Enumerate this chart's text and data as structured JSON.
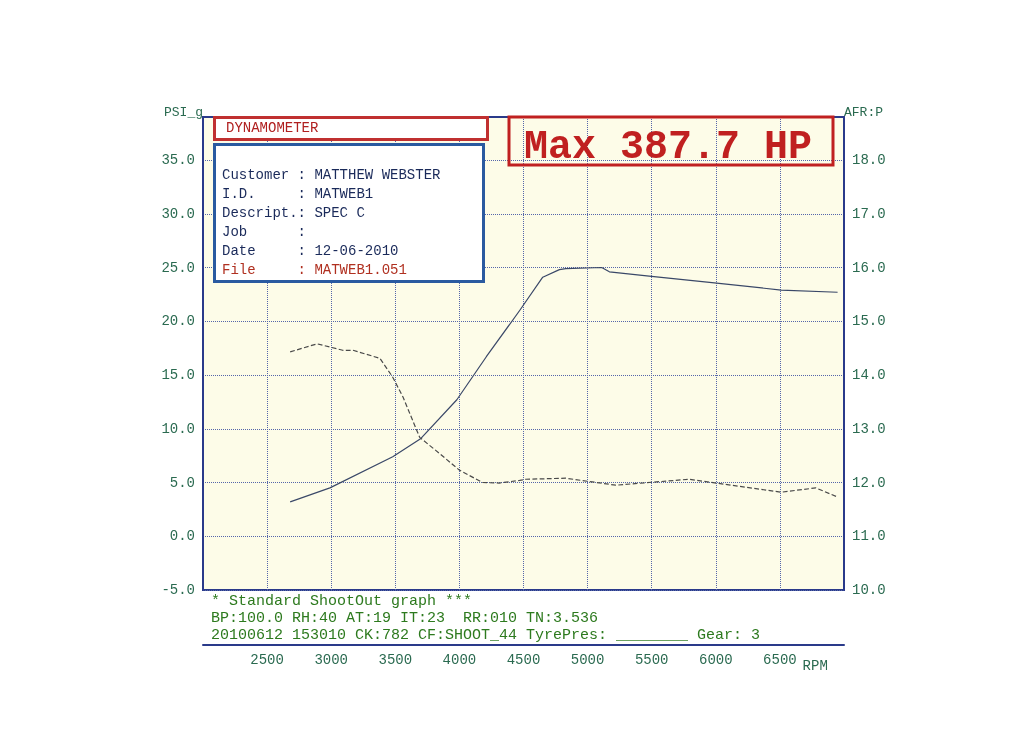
{
  "chart_data": {
    "type": "line",
    "title": "Max 387.7 HP",
    "xlabel": "RPM",
    "ylabel": "PSI_g",
    "y2label": "AFR:P",
    "annotations": [
      "DYNAMOMETER",
      "Customer : MATTHEW WEBSTER",
      "I.D.     : MATWEB1",
      "Descript.: SPEC C",
      "Job      :",
      "Date     : 12-06-2010",
      "File     : MATWEB1.051",
      "* Standard ShootOut graph ***",
      "BP:100.0 RH:40 AT:19 IT:23  RR:010 TN:3.536",
      "20100612 153010 CK:782 CF:SHOOT_44 TyrePres: ________ Gear: 3"
    ],
    "series": [
      {
        "color": "#3a4868",
        "line_style": "solid",
        "x": [
          2680,
          2990,
          3480,
          3700,
          3980,
          4210,
          4470,
          4650,
          4780,
          4830,
          5110,
          5170,
          5480,
          5970,
          6510,
          6950
        ],
        "values": [
          3.2,
          4.5,
          7.4,
          9.1,
          12.7,
          16.7,
          21.0,
          24.1,
          24.8,
          24.9,
          25.0,
          24.6,
          24.2,
          23.6,
          22.9,
          22.7
        ]
      },
      {
        "color": "#4a4a4a",
        "line_style": "dashed",
        "axis": "y2",
        "x": [
          2680,
          2890,
          3090,
          3170,
          3380,
          3480,
          3560,
          3690,
          3840,
          4000,
          4180,
          4310,
          4470,
          4520,
          4830,
          5220,
          5790,
          6120,
          6510,
          6780,
          6950
        ],
        "values": [
          14.43,
          14.58,
          14.46,
          14.46,
          14.31,
          13.96,
          13.59,
          12.84,
          12.55,
          12.23,
          12.0,
          11.99,
          12.04,
          12.06,
          12.08,
          11.95,
          12.06,
          11.95,
          11.82,
          11.9,
          11.73
        ]
      }
    ],
    "xlim": [
      2000,
      7000
    ],
    "xticks": [
      2500,
      3000,
      3500,
      4000,
      4500,
      5000,
      5500,
      6000,
      6500
    ],
    "ylim": [
      -5,
      39
    ],
    "yticks": [
      {
        "value": -5,
        "label": "-5.0"
      },
      {
        "value": 0,
        "label": "0.0"
      },
      {
        "value": 5,
        "label": "5.0"
      },
      {
        "value": 10,
        "label": "10.0"
      },
      {
        "value": 15,
        "label": "15.0"
      },
      {
        "value": 20,
        "label": "20.0"
      },
      {
        "value": 25,
        "label": "25.0"
      },
      {
        "value": 30,
        "label": "30.0"
      },
      {
        "value": 35,
        "label": "35.0"
      }
    ],
    "y2lim": [
      10,
      18.8
    ],
    "y2ticks": [
      {
        "value": 10,
        "label": "10.0"
      },
      {
        "value": 11,
        "label": "11.0"
      },
      {
        "value": 12,
        "label": "12.0"
      },
      {
        "value": 13,
        "label": "13.0"
      },
      {
        "value": 14,
        "label": "14.0"
      },
      {
        "value": 15,
        "label": "15.0"
      },
      {
        "value": 16,
        "label": "16.0"
      },
      {
        "value": 17,
        "label": "17.0"
      },
      {
        "value": 18,
        "label": "18.0"
      }
    ],
    "grid": true,
    "marker": "none"
  }
}
